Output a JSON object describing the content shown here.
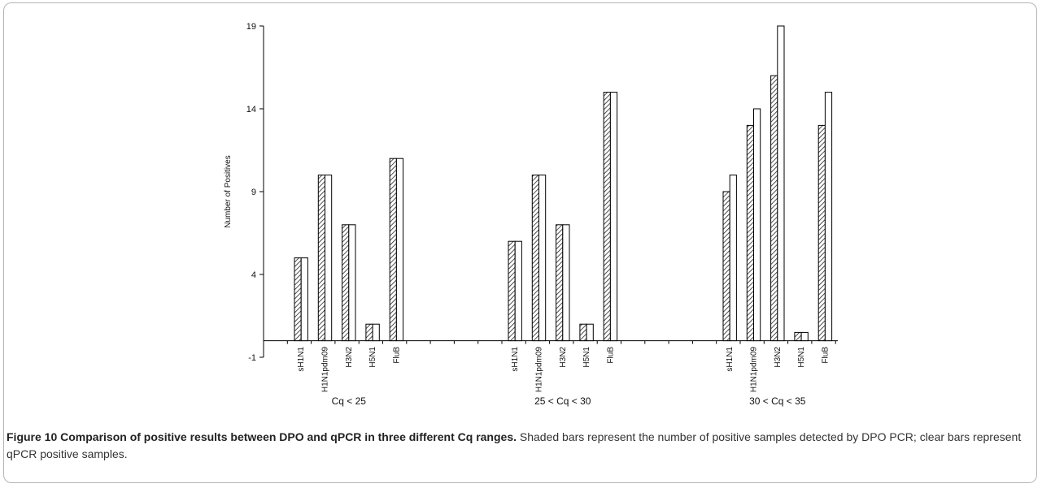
{
  "chart_data": {
    "type": "bar",
    "ylabel": "Number of Positives",
    "ylim": [
      -1,
      19
    ],
    "yticks": [
      -1,
      4,
      9,
      14,
      19
    ],
    "groups": [
      {
        "label": "Cq < 25",
        "categories": [
          "sH1N1",
          "H1N1pdm09",
          "H3N2",
          "H5N1",
          "FluB"
        ]
      },
      {
        "label": "25 < Cq < 30",
        "categories": [
          "sH1N1",
          "H1N1pdm09",
          "H3N2",
          "H5N1",
          "FluB"
        ]
      },
      {
        "label": "30 < Cq < 35",
        "categories": [
          "sH1N1",
          "H1N1pdm09",
          "H3N2",
          "H5N1",
          "FluB"
        ]
      }
    ],
    "series": [
      {
        "pattern": "hatched",
        "values": [
          [
            5,
            10,
            7,
            1,
            11
          ],
          [
            6,
            10,
            7,
            1,
            15
          ],
          [
            9,
            13,
            16,
            0.5,
            13
          ]
        ]
      },
      {
        "pattern": "clear",
        "values": [
          [
            5,
            10,
            7,
            1,
            11
          ],
          [
            6,
            10,
            7,
            1,
            15
          ],
          [
            10,
            14,
            19,
            0.5,
            15
          ]
        ]
      }
    ]
  },
  "caption": {
    "title": "Figure 10 Comparison of positive results between DPO and qPCR in three different Cq ranges.",
    "text": " Shaded bars represent the number of positive samples detected by DPO PCR; clear bars represent qPCR positive samples."
  }
}
